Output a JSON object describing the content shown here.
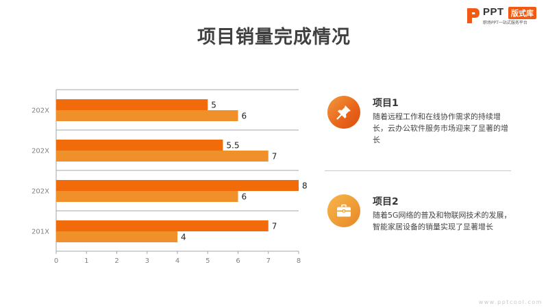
{
  "logo": {
    "ppt": "PPT",
    "badge": "版式库",
    "tagline": "职场PPT一站式服务平台"
  },
  "title": "项目销量完成情况",
  "chart_data": {
    "type": "bar",
    "orientation": "horizontal",
    "categories": [
      "202X",
      "202X",
      "202X",
      "201X"
    ],
    "series": [
      {
        "values": [
          5,
          5.5,
          8,
          7
        ],
        "color": "#f26b0a"
      },
      {
        "values": [
          6,
          7,
          6,
          4
        ],
        "color": "#f0902a"
      }
    ],
    "xlim": [
      0,
      8
    ],
    "xticks": [
      "0",
      "1",
      "2",
      "3",
      "4",
      "5",
      "6",
      "7",
      "8"
    ],
    "data_labels": true,
    "grid": "horizontal separators"
  },
  "items": [
    {
      "heading": "项目1",
      "icon": "pushpin-icon",
      "desc": "随着远程工作和在线协作需求的持续增长，云办公软件服务市场迎来了显著的增长"
    },
    {
      "heading": "项目2",
      "icon": "briefcase-icon",
      "desc": "随着5G网络的普及和物联网技术的发展，智能家居设备的销量实现了显著增长"
    }
  ],
  "watermark": "www.pptcool.com"
}
